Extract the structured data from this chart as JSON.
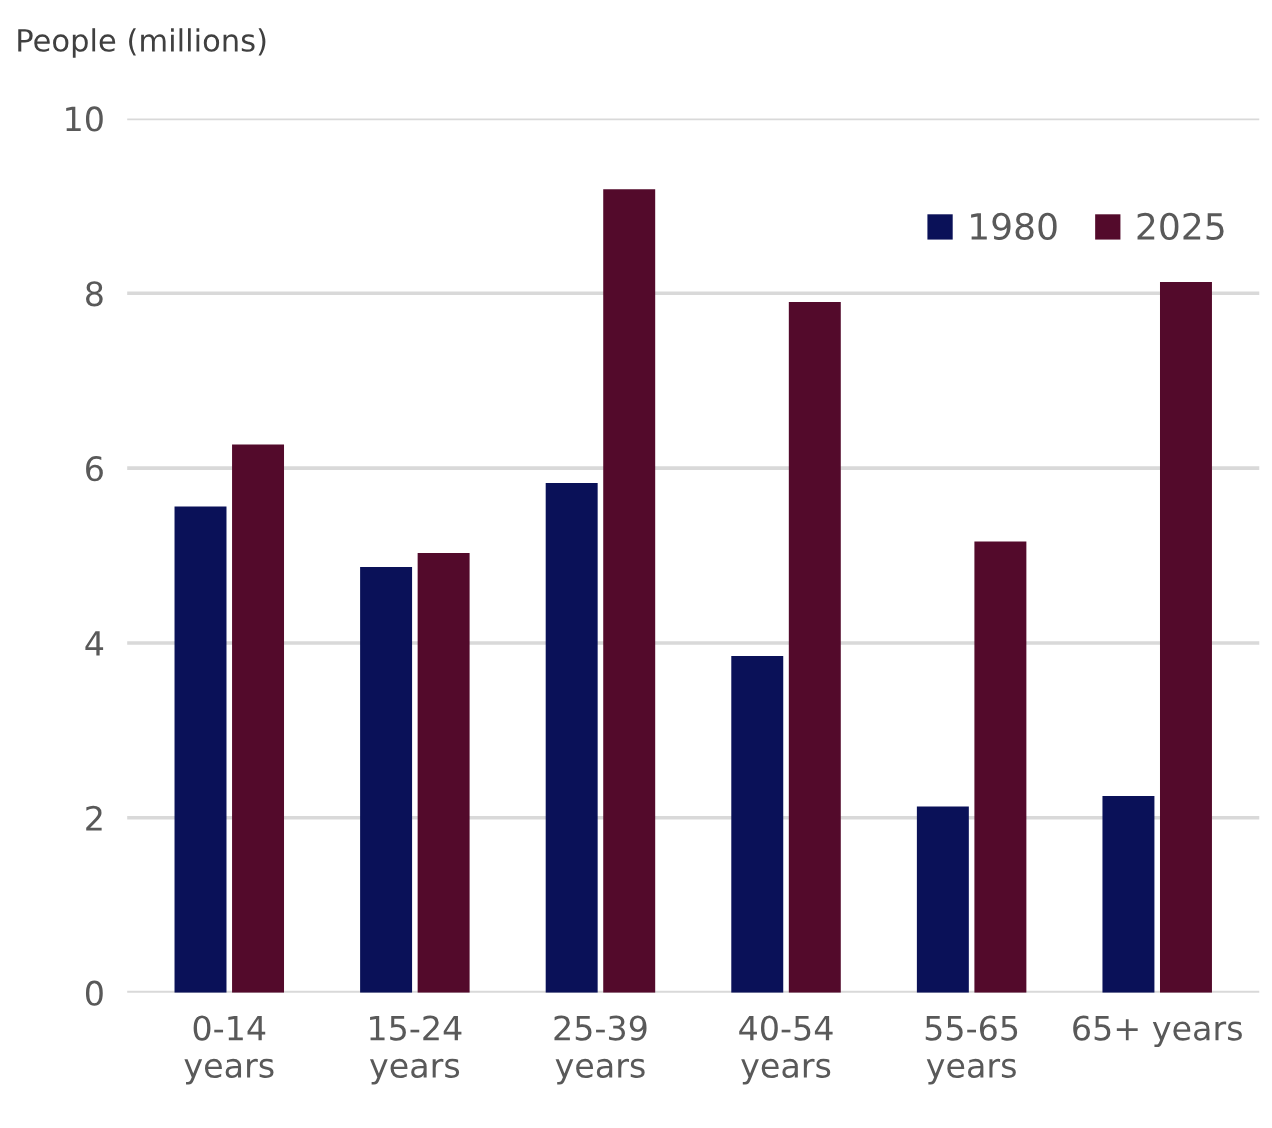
{
  "chart_data": {
    "type": "bar",
    "ylabel": "People (millions)",
    "categories": [
      "0-14\nyears",
      "15-24\nyears",
      "25-39\nyears",
      "40-54\nyears",
      "55-65\nyears",
      "65+ years"
    ],
    "series": [
      {
        "name": "1980",
        "color": "#0a1158",
        "values": [
          5.56,
          4.87,
          5.83,
          3.85,
          2.13,
          2.25
        ]
      },
      {
        "name": "2025",
        "color": "#530a2b",
        "values": [
          6.27,
          5.03,
          9.19,
          7.9,
          5.16,
          8.13
        ]
      }
    ],
    "ylim": [
      0,
      10
    ],
    "yticks": [
      0,
      2,
      4,
      6,
      8,
      10
    ],
    "grid": "y",
    "legend": "top right"
  }
}
